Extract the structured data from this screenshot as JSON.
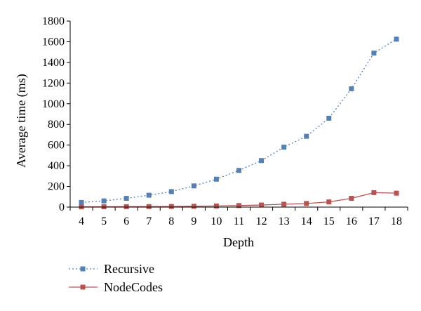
{
  "chart_data": {
    "type": "line",
    "xlabel": "Depth",
    "ylabel": "Average time (ms)",
    "x": [
      4,
      5,
      6,
      7,
      8,
      9,
      10,
      11,
      12,
      13,
      14,
      15,
      16,
      17,
      18
    ],
    "ylim": [
      0,
      1800
    ],
    "yticks": [
      0,
      200,
      400,
      600,
      800,
      1000,
      1200,
      1400,
      1600,
      1800
    ],
    "grid": false,
    "legend": "bottom-left",
    "series": [
      {
        "name": "Recursive",
        "color": "#4f81bd",
        "line_style": "dotted",
        "marker": "square",
        "values": [
          45,
          60,
          85,
          115,
          150,
          205,
          270,
          355,
          450,
          580,
          685,
          860,
          1145,
          1490,
          1625
        ]
      },
      {
        "name": "NodeCodes",
        "color": "#c0504d",
        "line_style": "solid",
        "marker": "square",
        "values": [
          2,
          3,
          4,
          5,
          6,
          8,
          11,
          15,
          20,
          28,
          35,
          50,
          85,
          140,
          135
        ]
      }
    ]
  }
}
